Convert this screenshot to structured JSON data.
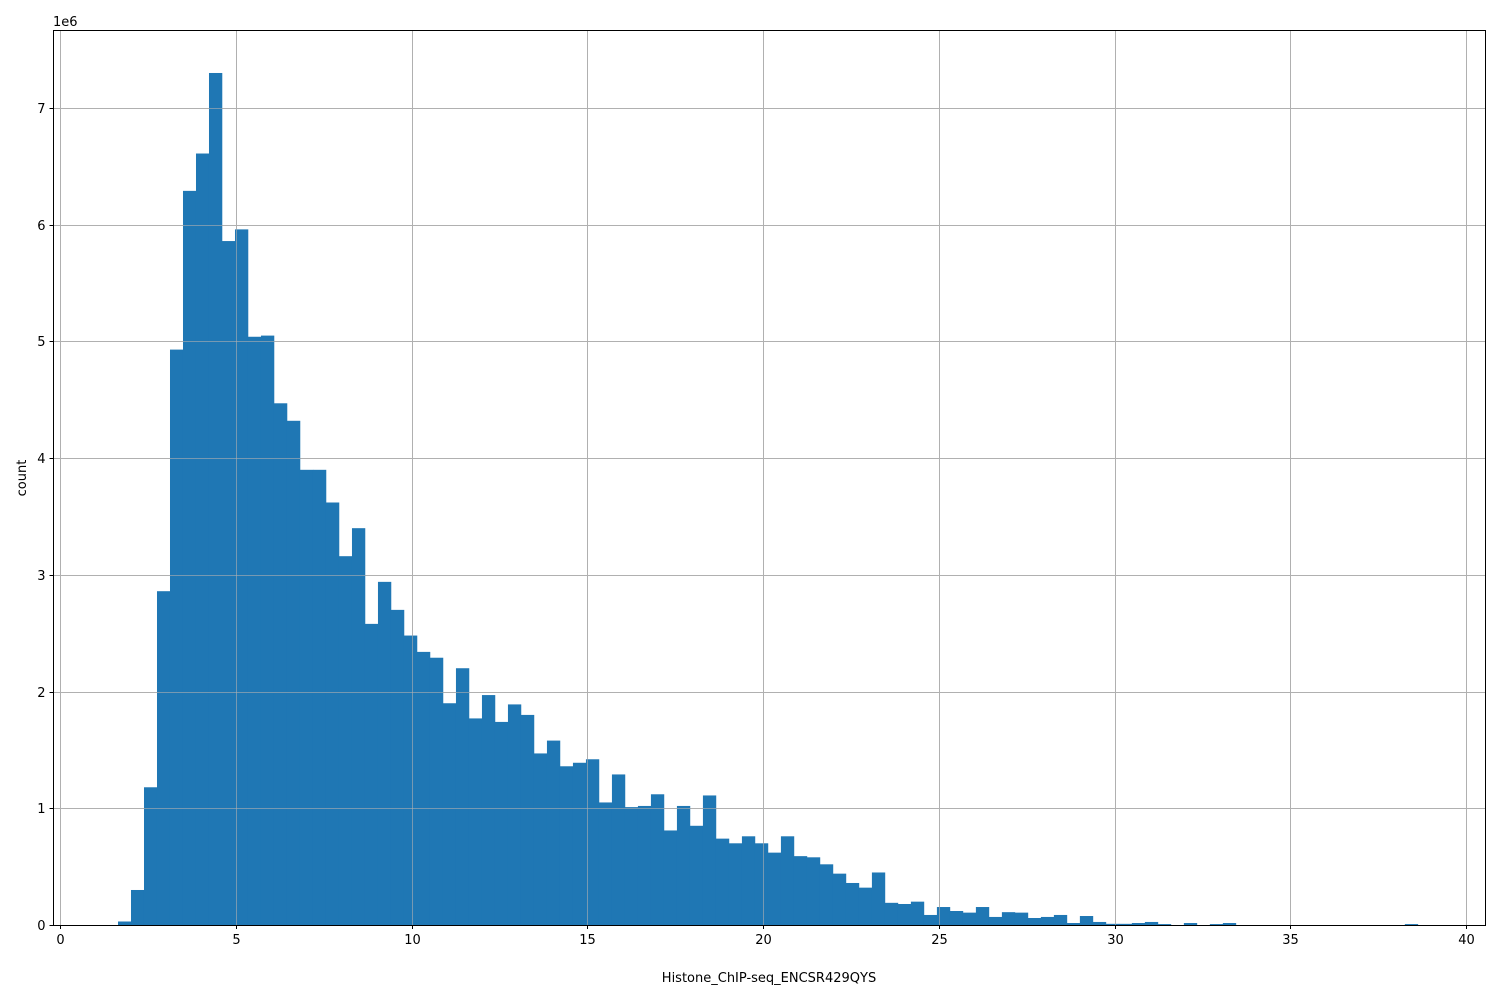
{
  "chart_data": {
    "type": "bar",
    "subtype": "histogram",
    "title": "",
    "xlabel": "Histone_ChIP-seq_ENCSR429QYS",
    "ylabel": "count",
    "y_offset_label": "1e6",
    "xlim": [
      -0.2,
      40.5
    ],
    "ylim": [
      0,
      7.67
    ],
    "y_scale_factor": 1000000,
    "x_ticks": [
      "0",
      "5",
      "10",
      "15",
      "20",
      "25",
      "30",
      "35",
      "40"
    ],
    "y_ticks": [
      "0",
      "1",
      "2",
      "3",
      "4",
      "5",
      "6",
      "7"
    ],
    "grid": true,
    "bar_color": "#1f77b4",
    "bin_start": 1.65,
    "bin_width": 0.3698,
    "values": [
      0.03,
      0.3,
      1.18,
      2.86,
      4.93,
      6.29,
      6.61,
      7.3,
      5.86,
      5.96,
      5.04,
      5.05,
      4.47,
      4.32,
      3.9,
      3.9,
      3.62,
      3.16,
      3.4,
      2.58,
      2.94,
      2.7,
      2.48,
      2.34,
      2.29,
      1.9,
      2.2,
      1.77,
      1.97,
      1.74,
      1.89,
      1.8,
      1.47,
      1.58,
      1.36,
      1.39,
      1.42,
      1.05,
      1.29,
      1.01,
      1.02,
      1.12,
      0.81,
      1.02,
      0.85,
      1.11,
      0.74,
      0.7,
      0.76,
      0.7,
      0.62,
      0.76,
      0.59,
      0.58,
      0.52,
      0.44,
      0.36,
      0.32,
      0.45,
      0.19,
      0.18,
      0.2,
      0.086,
      0.154,
      0.12,
      0.106,
      0.154,
      0.069,
      0.11,
      0.106,
      0.06,
      0.069,
      0.086,
      0.017,
      0.077,
      0.026,
      0.01,
      0.01,
      0.017,
      0.026,
      0.008,
      0,
      0.017,
      0,
      0.008,
      0.017,
      0,
      0,
      0,
      0,
      0,
      0,
      0,
      0,
      0,
      0,
      0,
      0,
      0,
      0.008
    ]
  }
}
